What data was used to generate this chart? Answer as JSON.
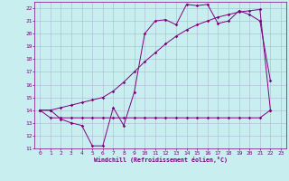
{
  "xlabel": "Windchill (Refroidissement éolien,°C)",
  "background_color": "#c8eef0",
  "grid_color": "#b0b8d0",
  "line_color": "#800080",
  "xlim": [
    -0.5,
    23.5
  ],
  "ylim": [
    11,
    22.5
  ],
  "yticks": [
    11,
    12,
    13,
    14,
    15,
    16,
    17,
    18,
    19,
    20,
    21,
    22
  ],
  "xticks": [
    0,
    1,
    2,
    3,
    4,
    5,
    6,
    7,
    8,
    9,
    10,
    11,
    12,
    13,
    14,
    15,
    16,
    17,
    18,
    19,
    20,
    21,
    22,
    23
  ],
  "line1_x": [
    0,
    1,
    2,
    3,
    4,
    5,
    6,
    7,
    8,
    9,
    10,
    11,
    12,
    13,
    14,
    15,
    16,
    17,
    18,
    19,
    20,
    21,
    22
  ],
  "line1_y": [
    14,
    14,
    13.3,
    13.0,
    12.8,
    11.2,
    11.2,
    14.2,
    12.8,
    15.4,
    20.0,
    21.0,
    21.1,
    20.7,
    22.3,
    22.2,
    22.3,
    20.8,
    21.0,
    21.8,
    21.5,
    21.0,
    16.3
  ],
  "line2_x": [
    0,
    1,
    2,
    3,
    4,
    5,
    6,
    7,
    8,
    9,
    10,
    11,
    12,
    13,
    14,
    15,
    16,
    17,
    18,
    19,
    20,
    21,
    22
  ],
  "line2_y": [
    14,
    13.4,
    13.4,
    13.4,
    13.4,
    13.4,
    13.4,
    13.4,
    13.4,
    13.4,
    13.4,
    13.4,
    13.4,
    13.4,
    13.4,
    13.4,
    13.4,
    13.4,
    13.4,
    13.4,
    13.4,
    13.4,
    14
  ],
  "line3_x": [
    0,
    1,
    2,
    3,
    4,
    5,
    6,
    7,
    8,
    9,
    10,
    11,
    12,
    13,
    14,
    15,
    16,
    17,
    18,
    19,
    20,
    21,
    22
  ],
  "line3_y": [
    14,
    14,
    14.2,
    14.4,
    14.6,
    14.8,
    15.0,
    15.5,
    16.2,
    17.0,
    17.8,
    18.5,
    19.2,
    19.8,
    20.3,
    20.7,
    21.0,
    21.3,
    21.5,
    21.7,
    21.8,
    21.9,
    14
  ]
}
